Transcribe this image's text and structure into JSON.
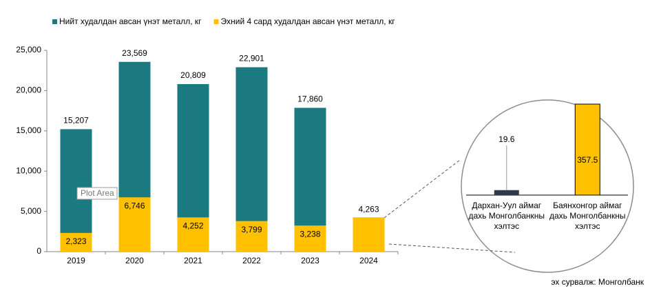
{
  "chart_data": [
    {
      "type": "bar",
      "categories": [
        "2019",
        "2020",
        "2021",
        "2022",
        "2023",
        "2024"
      ],
      "series": [
        {
          "name": "Нийт худалдан авсан үнэт металл, кг",
          "color": "#1a7a80",
          "values": [
            15207,
            23569,
            20809,
            22901,
            17860,
            null
          ],
          "value_labels": [
            "15,207",
            "23,569",
            "20,809",
            "22,901",
            "17,860",
            null
          ]
        },
        {
          "name": "Эхний 4 сард худалдан авсан үнэт металл, кг",
          "color": "#ffc000",
          "values": [
            2323,
            6746,
            4252,
            3799,
            3238,
            4263
          ],
          "value_labels": [
            "2,323",
            "6,746",
            "4,252",
            "3,799",
            "3,238",
            "4,263"
          ]
        }
      ],
      "ylim": [
        0,
        25000
      ],
      "yticks": [
        0,
        {
          "value": 5000,
          "label": "5,000"
        },
        {
          "value": 10000,
          "label": "10,000"
        },
        {
          "value": 15000,
          "label": "15,000"
        },
        {
          "value": 20000,
          "label": "20,000"
        },
        {
          "value": 25000,
          "label": "25,000"
        }
      ],
      "legend": "top",
      "tooltip": "Plot Area",
      "source": "эх сурвалж: Монголбанк"
    },
    {
      "type": "bar",
      "categories": [
        "Дархан-Уул аймаг\nдахь Монголбанкны\nхэлтэс",
        "Баянхонгор аймаг\nдахь Монголбанкны\nхэлтэс"
      ],
      "values": [
        19.6,
        357.5
      ],
      "colors": [
        "#2e3b4e",
        "#ffc000"
      ]
    }
  ]
}
